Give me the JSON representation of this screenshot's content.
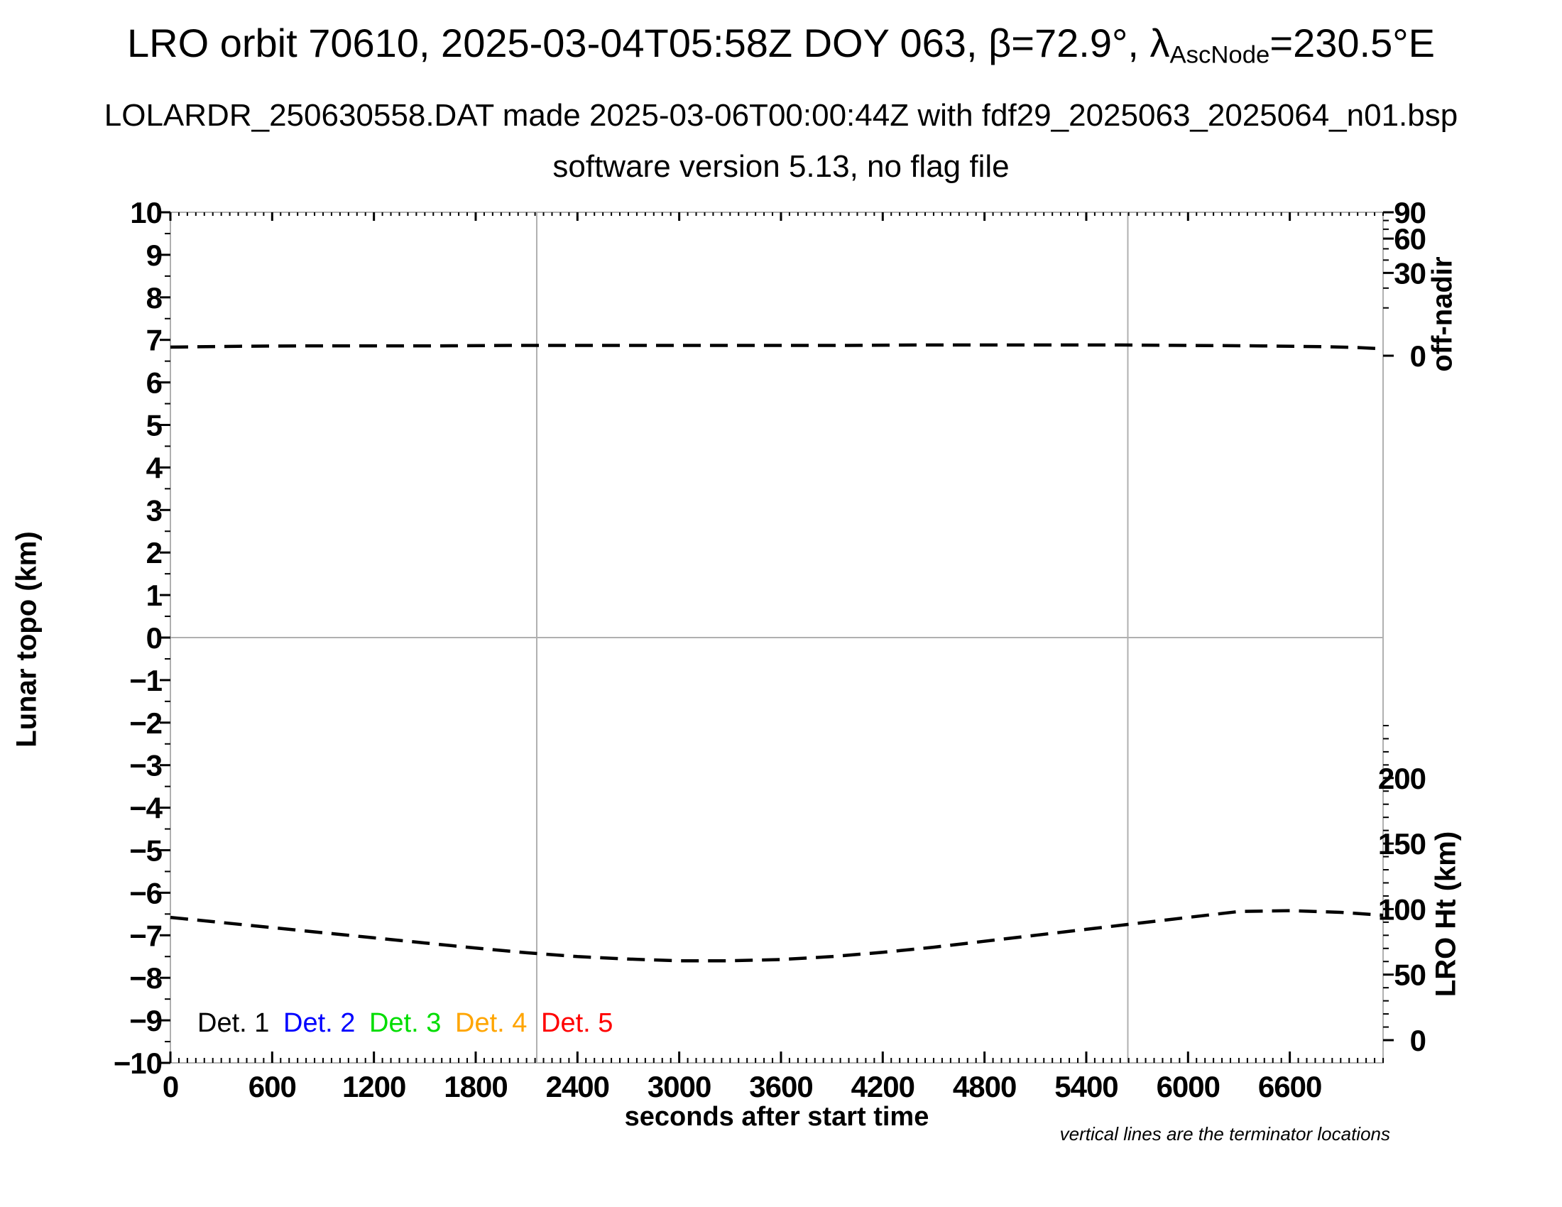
{
  "header": {
    "title_prefix": "LRO orbit 70610, 2025-03-04T05:58Z DOY 063, β=72.9°, λ",
    "title_subscript": "AscNode",
    "title_suffix": "=230.5°E",
    "subtitle1": "LOLARDR_250630558.DAT made 2025-03-06T00:00:44Z with fdf29_2025063_2025064_n01.bsp",
    "subtitle2": "software version 5.13, no flag file"
  },
  "labels": {
    "xlabel": "seconds after start time",
    "ylabel_left": "Lunar topo (km)",
    "ylabel_right_top": "off-nadir",
    "ylabel_right_bottom": "LRO Ht (km)",
    "footer_note": "vertical lines are the terminator locations"
  },
  "legend": {
    "items": [
      {
        "label": "Det. 1",
        "color": "#000000"
      },
      {
        "label": "Det. 2",
        "color": "#0000ff"
      },
      {
        "label": "Det. 3",
        "color": "#00dd00"
      },
      {
        "label": "Det. 4",
        "color": "#ffa500"
      },
      {
        "label": "Det. 5",
        "color": "#ff0000"
      }
    ]
  },
  "colors": {
    "axis_box": "#b0b0b0",
    "reference_lines": "#b0b0b0",
    "ticks_and_text": "#000000",
    "curves": "#000000"
  },
  "chart_data": {
    "type": "line",
    "title": "LRO orbit 70610, 2025-03-04T05:58Z DOY 063, β=72.9°, λAscNode=230.5°E",
    "xlabel": "seconds after start time",
    "x_range": [
      0,
      7150
    ],
    "x_major_tick_step": 600,
    "x_minor_tick_step": 50,
    "x_tick_labels": [
      "0",
      "600",
      "1200",
      "1800",
      "2400",
      "3000",
      "3600",
      "4200",
      "4800",
      "5400",
      "6000",
      "6600"
    ],
    "left_axis": {
      "label": "Lunar topo (km)",
      "range": [
        -10,
        10
      ],
      "major_tick_step": 1,
      "minor_tick_step": 0.5,
      "tick_labels": [
        "10",
        "9",
        "8",
        "7",
        "6",
        "5",
        "4",
        "3",
        "2",
        "1",
        "0",
        "−1",
        "−2",
        "−3",
        "−4",
        "−5",
        "−6",
        "−7",
        "−8",
        "−9",
        "−10"
      ]
    },
    "right_axis_top": {
      "label": "off-nadir",
      "scale": "sqrt",
      "range_deg": [
        0,
        90
      ],
      "major_ticks": [
        90,
        60,
        30,
        0
      ],
      "tick_labels": [
        "90",
        "60",
        "30",
        "0"
      ],
      "minor_tick_step_deg": 10
    },
    "right_axis_bottom": {
      "label": "LRO Ht (km)",
      "range_km": [
        0,
        240
      ],
      "major_ticks": [
        200,
        150,
        100,
        50,
        0
      ],
      "tick_labels": [
        "200",
        "150",
        "100",
        "50",
        "0"
      ],
      "minor_tick_step_km": 10
    },
    "terminator_lines_x_seconds": [
      2160,
      5645
    ],
    "zero_reference_line_topo_km": 0,
    "grid": "off",
    "legend_position": "bottom-left-inside",
    "series": [
      {
        "name": "off-nadir angle",
        "axis": "right_axis_top",
        "style": "dashed",
        "x": [
          0,
          400,
          800,
          1200,
          1600,
          2000,
          2400,
          2800,
          3200,
          3600,
          4000,
          4400,
          4800,
          5200,
          5600,
          6000,
          6400,
          6800,
          7000,
          7150
        ],
        "values_deg": [
          0.33,
          0.4,
          0.43,
          0.43,
          0.43,
          0.46,
          0.46,
          0.46,
          0.46,
          0.46,
          0.46,
          0.49,
          0.49,
          0.49,
          0.49,
          0.46,
          0.43,
          0.36,
          0.31,
          0.24
        ],
        "topo_axis_equivalent": [
          6.83,
          6.85,
          6.86,
          6.86,
          6.86,
          6.87,
          6.87,
          6.87,
          6.87,
          6.87,
          6.87,
          6.88,
          6.88,
          6.88,
          6.88,
          6.87,
          6.86,
          6.84,
          6.82,
          6.79
        ]
      },
      {
        "name": "LRO height",
        "axis": "right_axis_bottom",
        "style": "dashed",
        "x": [
          0,
          300,
          600,
          900,
          1200,
          1500,
          1800,
          2100,
          2400,
          2700,
          3000,
          3300,
          3600,
          3900,
          4200,
          4500,
          4800,
          5100,
          5400,
          5700,
          6000,
          6300,
          6600,
          6900,
          7150
        ],
        "values_km": [
          93.6,
          89.7,
          85.9,
          82.0,
          78.1,
          74.2,
          70.3,
          66.7,
          63.8,
          61.8,
          60.5,
          60.5,
          61.5,
          63.8,
          67.0,
          70.9,
          75.5,
          80.0,
          84.6,
          89.1,
          93.6,
          98.2,
          98.9,
          97.5,
          95.0
        ],
        "topo_axis_equivalent": [
          -6.58,
          -6.7,
          -6.82,
          -6.94,
          -7.06,
          -7.18,
          -7.3,
          -7.41,
          -7.5,
          -7.56,
          -7.6,
          -7.6,
          -7.57,
          -7.5,
          -7.4,
          -7.28,
          -7.14,
          -7.0,
          -6.86,
          -6.72,
          -6.58,
          -6.44,
          -6.42,
          -6.46,
          -6.53
        ]
      }
    ],
    "annotations": [
      "vertical lines are the terminator locations"
    ],
    "detectors": [
      "Det. 1",
      "Det. 2",
      "Det. 3",
      "Det. 4",
      "Det. 5"
    ]
  }
}
